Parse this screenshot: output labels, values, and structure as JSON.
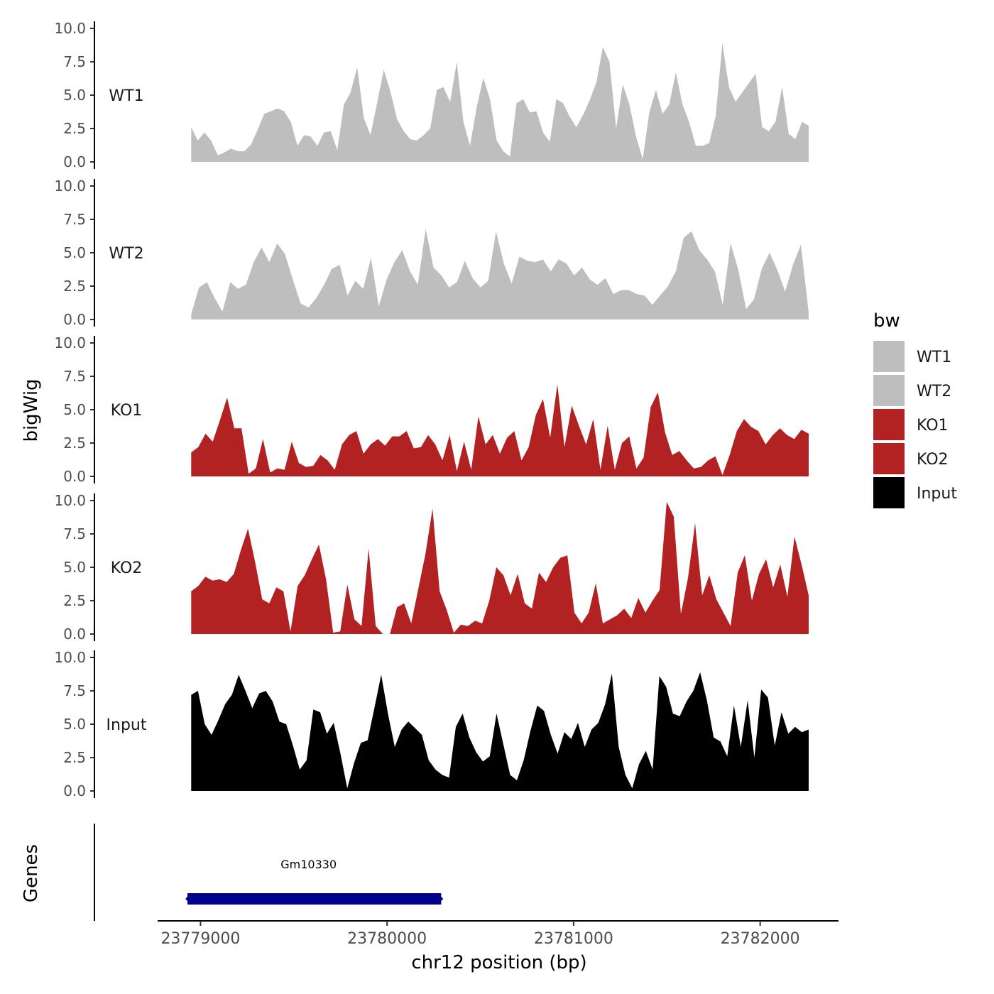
{
  "chart_data": {
    "type": "area",
    "title": "",
    "ylabel": "bigWig",
    "xlabel": "chr12 position (bp)",
    "genes_label": "Genes",
    "ylim": [
      0,
      10
    ],
    "y_ticks": [
      "0.0",
      "2.5",
      "5.0",
      "7.5",
      "10.0"
    ],
    "xlim": [
      23778770,
      23782420
    ],
    "x_ticks": [
      {
        "value": 23779000,
        "label": "23779000"
      },
      {
        "value": 23780000,
        "label": "23780000"
      },
      {
        "value": 23781000,
        "label": "23781000"
      },
      {
        "value": 23782000,
        "label": "23782000"
      }
    ],
    "x_start": 23778950,
    "x_end": 23782260,
    "legend": {
      "title": "bw",
      "position": "right",
      "items": [
        {
          "label": "WT1",
          "color": "#bebebe"
        },
        {
          "label": "WT2",
          "color": "#bebebe"
        },
        {
          "label": "KO1",
          "color": "#b22222"
        },
        {
          "label": "KO2",
          "color": "#b22222"
        },
        {
          "label": "Input",
          "color": "#000000"
        }
      ]
    },
    "series": [
      {
        "name": "WT1",
        "color": "#bebebe",
        "values": [
          2.6,
          1.6,
          2.2,
          1.6,
          0.5,
          0.7,
          1.0,
          0.8,
          0.8,
          1.3,
          2.4,
          3.6,
          3.8,
          4.0,
          3.8,
          3.0,
          1.2,
          2.0,
          1.9,
          1.2,
          2.2,
          2.3,
          0.9,
          4.3,
          5.2,
          7.1,
          3.3,
          2.0,
          4.4,
          6.9,
          5.3,
          3.2,
          2.3,
          1.7,
          1.6,
          2.0,
          2.5,
          5.4,
          5.6,
          4.5,
          7.5,
          3.0,
          1.2,
          4.1,
          6.3,
          4.7,
          1.6,
          0.8,
          0.4,
          4.4,
          4.7,
          3.7,
          3.8,
          2.2,
          1.5,
          4.7,
          4.4,
          3.4,
          2.6,
          3.5,
          4.6,
          5.9,
          8.6,
          7.5,
          2.5,
          5.8,
          4.3,
          1.9,
          0.2,
          3.7,
          5.4,
          3.6,
          4.3,
          6.7,
          4.3,
          3.0,
          1.2,
          1.2,
          1.4,
          3.4,
          8.9,
          5.6,
          4.5,
          5.2,
          5.9,
          6.6,
          2.6,
          2.3,
          3.0,
          5.6,
          2.1,
          1.7,
          3.0,
          2.7
        ]
      },
      {
        "name": "WT2",
        "color": "#bebebe",
        "values": [
          0.4,
          2.4,
          2.8,
          1.6,
          0.6,
          2.8,
          2.3,
          2.6,
          4.3,
          5.4,
          4.3,
          5.7,
          4.9,
          3.0,
          1.2,
          0.9,
          1.6,
          2.6,
          3.8,
          4.1,
          1.8,
          2.9,
          2.3,
          4.6,
          1.0,
          3.0,
          4.3,
          5.2,
          3.6,
          2.6,
          6.8,
          3.9,
          3.3,
          2.4,
          2.8,
          4.4,
          3.1,
          2.4,
          2.9,
          6.6,
          4.2,
          2.7,
          4.7,
          4.4,
          4.3,
          4.5,
          3.6,
          4.5,
          4.2,
          3.3,
          3.9,
          3.0,
          2.6,
          3.1,
          1.9,
          2.2,
          2.2,
          1.9,
          1.8,
          1.1,
          1.8,
          2.5,
          3.6,
          6.1,
          6.6,
          5.2,
          4.5,
          3.6,
          1.1,
          5.7,
          3.7,
          0.8,
          1.5,
          3.8,
          5.0,
          3.7,
          2.1,
          4.1,
          5.6,
          0.5
        ]
      },
      {
        "name": "KO1",
        "color": "#b22222",
        "values": [
          1.8,
          2.2,
          3.2,
          2.6,
          4.2,
          5.9,
          3.6,
          3.6,
          0.2,
          0.6,
          2.8,
          0.3,
          0.6,
          0.5,
          2.6,
          1.0,
          0.7,
          0.8,
          1.6,
          1.2,
          0.5,
          2.4,
          3.1,
          3.4,
          1.7,
          2.4,
          2.8,
          2.3,
          3.0,
          3.0,
          3.4,
          2.1,
          2.2,
          3.1,
          2.4,
          1.2,
          3.1,
          0.4,
          2.6,
          0.5,
          4.5,
          2.4,
          3.1,
          1.7,
          2.9,
          3.4,
          1.2,
          2.2,
          4.6,
          5.8,
          2.9,
          6.9,
          2.2,
          5.3,
          3.8,
          2.4,
          4.3,
          0.5,
          3.8,
          0.5,
          2.5,
          3.0,
          0.6,
          1.4,
          5.2,
          6.3,
          3.3,
          1.6,
          1.9,
          1.2,
          0.6,
          0.7,
          1.2,
          1.5,
          0.1,
          1.6,
          3.4,
          4.3,
          3.7,
          3.4,
          2.4,
          3.1,
          3.6,
          3.1,
          2.8,
          3.5,
          3.2
        ]
      },
      {
        "name": "KO2",
        "color": "#b22222",
        "values": [
          3.2,
          3.6,
          4.3,
          4.0,
          4.1,
          3.9,
          4.5,
          6.3,
          7.9,
          5.4,
          2.6,
          2.3,
          3.5,
          3.2,
          0.2,
          3.6,
          4.4,
          5.6,
          6.7,
          4.1,
          0.1,
          0.2,
          3.7,
          1.1,
          0.6,
          6.4,
          0.6,
          0.0,
          0.0,
          2.0,
          2.3,
          0.8,
          3.4,
          6.0,
          9.4,
          3.2,
          1.8,
          0.1,
          0.7,
          0.6,
          1.0,
          0.8,
          2.5,
          5.0,
          4.4,
          2.9,
          4.5,
          2.3,
          1.9,
          4.6,
          3.9,
          5.0,
          5.7,
          5.9,
          1.6,
          0.8,
          1.6,
          3.8,
          0.8,
          1.1,
          1.4,
          1.9,
          1.2,
          2.7,
          1.6,
          2.5,
          3.3,
          9.9,
          8.8,
          1.5,
          4.2,
          8.3,
          2.9,
          4.4,
          2.6,
          1.6,
          0.6,
          4.6,
          5.9,
          2.5,
          4.5,
          5.6,
          3.5,
          5.2,
          2.8,
          7.3,
          5.2,
          2.9
        ]
      },
      {
        "name": "Input",
        "color": "#000000",
        "values": [
          7.2,
          7.5,
          5.0,
          4.2,
          5.3,
          6.5,
          7.2,
          8.7,
          7.5,
          6.2,
          7.3,
          7.5,
          6.7,
          5.2,
          5.0,
          3.4,
          1.6,
          2.3,
          6.1,
          5.9,
          4.3,
          5.1,
          2.8,
          0.2,
          2.1,
          3.6,
          3.8,
          6.2,
          8.7,
          5.8,
          3.3,
          4.6,
          5.2,
          4.7,
          4.2,
          2.3,
          1.6,
          1.2,
          1.0,
          4.8,
          5.8,
          4.0,
          2.9,
          2.2,
          2.6,
          5.8,
          3.5,
          1.2,
          0.8,
          2.3,
          4.5,
          6.4,
          6.0,
          4.2,
          2.8,
          4.4,
          3.9,
          5.1,
          3.3,
          4.6,
          5.1,
          6.5,
          8.8,
          3.3,
          1.2,
          0.2,
          2.0,
          3.0,
          1.6,
          8.6,
          7.8,
          5.8,
          5.6,
          6.7,
          7.5,
          8.9,
          6.8,
          4.0,
          3.7,
          2.6,
          6.4,
          3.3,
          6.8,
          2.5,
          7.6,
          7.0,
          3.4,
          5.9,
          4.3,
          4.8,
          4.4,
          4.6
        ]
      }
    ],
    "genes": [
      {
        "name": "Gm10330",
        "start": 23778930,
        "end": 23780290,
        "color": "#00008b"
      }
    ]
  }
}
